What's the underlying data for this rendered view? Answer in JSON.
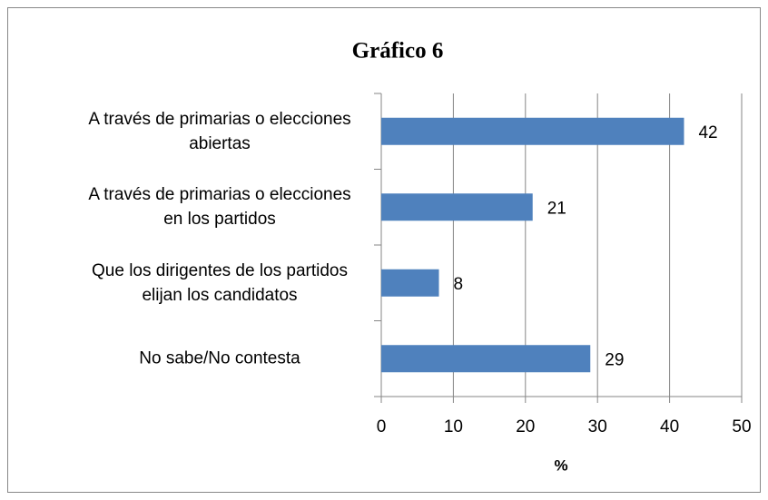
{
  "chart_data": {
    "type": "barh",
    "title": "Gráfico 6",
    "xlabel": "%",
    "categories": [
      "A través de primarias o elecciones abiertas",
      "A través de primarias o elecciones en los partidos",
      "Que los dirigentes de los partidos elijan los candidatos",
      "No sabe/No contesta"
    ],
    "values": [
      42,
      21,
      8,
      29
    ],
    "color": "#4f81bd",
    "xlim": [
      0,
      50
    ],
    "xticks": [
      0,
      10,
      20,
      30,
      40,
      50
    ],
    "grid": true
  }
}
